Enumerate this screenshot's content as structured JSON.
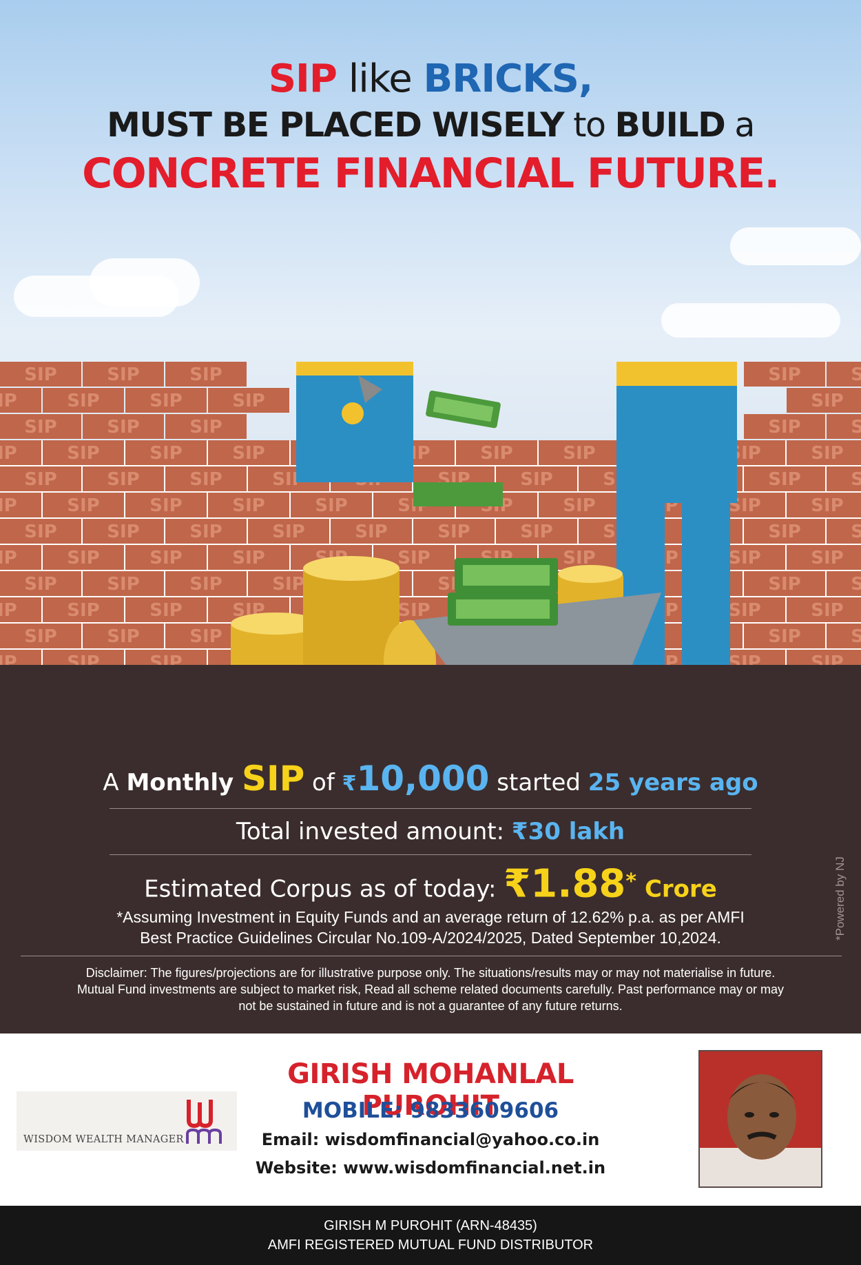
{
  "headline": {
    "line1": {
      "sip": "SIP",
      "like": " like ",
      "bricks": "BRICKS,"
    },
    "line2": {
      "part1": "MUST BE PLACED WISELY",
      "to": " to ",
      "build": "BUILD",
      "a": " a"
    },
    "line3": "CONCRETE FINANCIAL FUTURE."
  },
  "brick_label": "SIP",
  "stats": {
    "monthly": {
      "a": "A ",
      "monthly": "Monthly ",
      "sip": "SIP",
      "of": " of ",
      "rupee": "₹",
      "amount": "10,000",
      "started": " started ",
      "years": "25 years ago"
    },
    "invested": {
      "label": "Total invested amount: ",
      "value": "₹30 lakh"
    },
    "corpus": {
      "label": "Estimated Corpus as of today: ",
      "value": "₹1.88",
      "star": "*",
      "unit": " Crore"
    }
  },
  "assumption": {
    "line1": "*Assuming Investment in Equity Funds and an average return of 12.62% p.a. as per AMFI",
    "line2": "Best Practice  Guidelines Circular No.109-A/2024/2025, Dated September 10,2024."
  },
  "disclaimer": {
    "line1": "Disclaimer: The figures/projections are for illustrative purpose only. The situations/results may or may not materialise in future.",
    "line2": "Mutual Fund investments are subject to market risk, Read all scheme related documents carefully. Past performance may or may",
    "line3": "not be sustained in future and is not a guarantee of any future returns."
  },
  "powered_by": "*Powered by NJ",
  "contact": {
    "logo_text": "WISDOM WEALTH MANAGER",
    "name": "GIRISH MOHANLAL PUROHIT",
    "mobile": "MOBILE: 9833609606",
    "email": "Email: wisdomfinancial@yahoo.co.in",
    "website": "Website: www.wisdomfinancial.net.in"
  },
  "footer": {
    "line1": "GIRISH M PUROHIT (ARN-48435)",
    "line2": "AMFI REGISTERED MUTUAL FUND DISTRIBUTOR"
  },
  "colors": {
    "accent_red": "#e31d2b",
    "accent_blue": "#1f66b3",
    "gold": "#f7d21a",
    "light_blue": "#5ab4f0",
    "ground": "#3b2d2d",
    "brick": "#c0664a"
  }
}
